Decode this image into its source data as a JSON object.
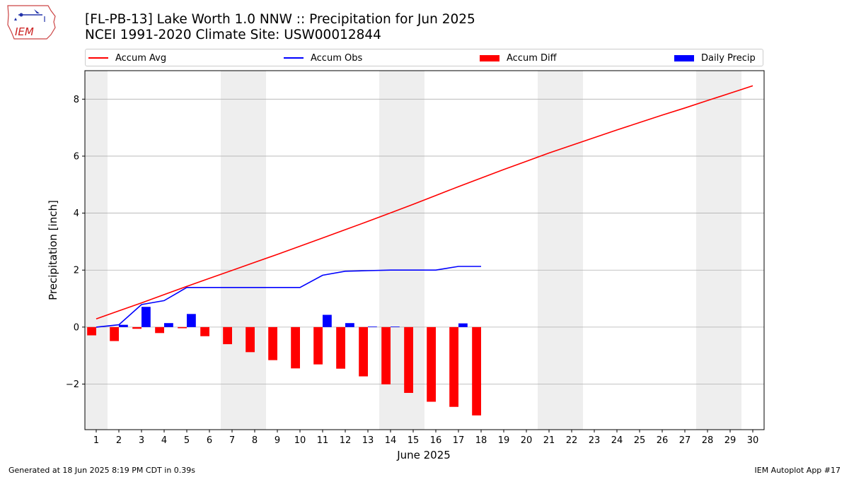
{
  "header": {
    "title_line1": "[FL-PB-13] Lake Worth 1.0 NNW :: Precipitation for Jun 2025",
    "title_line2": "NCEI 1991-2020 Climate Site: USW00012844",
    "logo_text": "IEM"
  },
  "footer": {
    "generated": "Generated at 18 Jun 2025 8:19 PM CDT in 0.39s",
    "app": "IEM Autoplot App #17"
  },
  "colors": {
    "avg": "#ff0000",
    "obs": "#0000ff",
    "diff": "#ff0000",
    "daily": "#0000ff",
    "weekend_shade": "#eeeeee",
    "grid": "#b0b0b0"
  },
  "chart_data": {
    "type": "bar",
    "title": "[FL-PB-13] Lake Worth 1.0 NNW :: Precipitation for Jun 2025",
    "xlabel": "June 2025",
    "ylabel": "Precipitation [inch]",
    "x": [
      1,
      2,
      3,
      4,
      5,
      6,
      7,
      8,
      9,
      10,
      11,
      12,
      13,
      14,
      15,
      16,
      17,
      18,
      19,
      20,
      21,
      22,
      23,
      24,
      25,
      26,
      27,
      28,
      29,
      30
    ],
    "xlim": [
      0.5,
      30.5
    ],
    "ylim": [
      -3.6,
      9.0
    ],
    "yticks": [
      -2,
      0,
      2,
      4,
      6,
      8
    ],
    "grid": "horizontal",
    "legend_position": "top",
    "weekend_days": [
      1,
      7,
      8,
      14,
      15,
      21,
      22,
      28,
      29
    ],
    "series": [
      {
        "name": "Accum Avg",
        "kind": "line",
        "x": [
          1,
          2,
          3,
          4,
          5,
          6,
          7,
          8,
          9,
          10,
          11,
          12,
          13,
          14,
          15,
          16,
          17,
          18,
          19,
          20,
          21,
          22,
          23,
          24,
          25,
          26,
          27,
          28,
          29,
          30
        ],
        "values": [
          0.29,
          0.57,
          0.85,
          1.14,
          1.43,
          1.71,
          1.99,
          2.27,
          2.55,
          2.84,
          3.13,
          3.42,
          3.71,
          4.01,
          4.31,
          4.62,
          4.93,
          5.23,
          5.53,
          5.82,
          6.11,
          6.38,
          6.65,
          6.92,
          7.18,
          7.44,
          7.69,
          7.95,
          8.21,
          8.47
        ]
      },
      {
        "name": "Accum Obs",
        "kind": "line",
        "x": [
          1,
          2,
          3,
          4,
          5,
          6,
          7,
          8,
          9,
          10,
          11,
          12,
          13,
          14,
          15,
          16,
          17,
          18
        ],
        "values": [
          0.0,
          0.08,
          0.79,
          0.93,
          1.39,
          1.39,
          1.39,
          1.39,
          1.39,
          1.39,
          1.82,
          1.96,
          1.98,
          2.0,
          2.0,
          2.0,
          2.13,
          2.13
        ]
      },
      {
        "name": "Accum Diff",
        "kind": "bar",
        "x": [
          1,
          2,
          3,
          4,
          5,
          6,
          7,
          8,
          9,
          10,
          11,
          12,
          13,
          14,
          15,
          16,
          17,
          18
        ],
        "values": [
          -0.29,
          -0.49,
          -0.06,
          -0.21,
          -0.04,
          -0.32,
          -0.6,
          -0.88,
          -1.16,
          -1.45,
          -1.31,
          -1.46,
          -1.73,
          -2.01,
          -2.31,
          -2.62,
          -2.8,
          -3.1
        ]
      },
      {
        "name": "Daily Precip",
        "kind": "bar",
        "x": [
          1,
          2,
          3,
          4,
          5,
          6,
          7,
          8,
          9,
          10,
          11,
          12,
          13,
          14,
          15,
          16,
          17,
          18
        ],
        "values": [
          0.0,
          0.08,
          0.71,
          0.14,
          0.46,
          0.0,
          0.0,
          0.0,
          0.0,
          0.0,
          0.43,
          0.14,
          0.02,
          0.02,
          0.0,
          0.0,
          0.13,
          0.0
        ]
      }
    ]
  }
}
